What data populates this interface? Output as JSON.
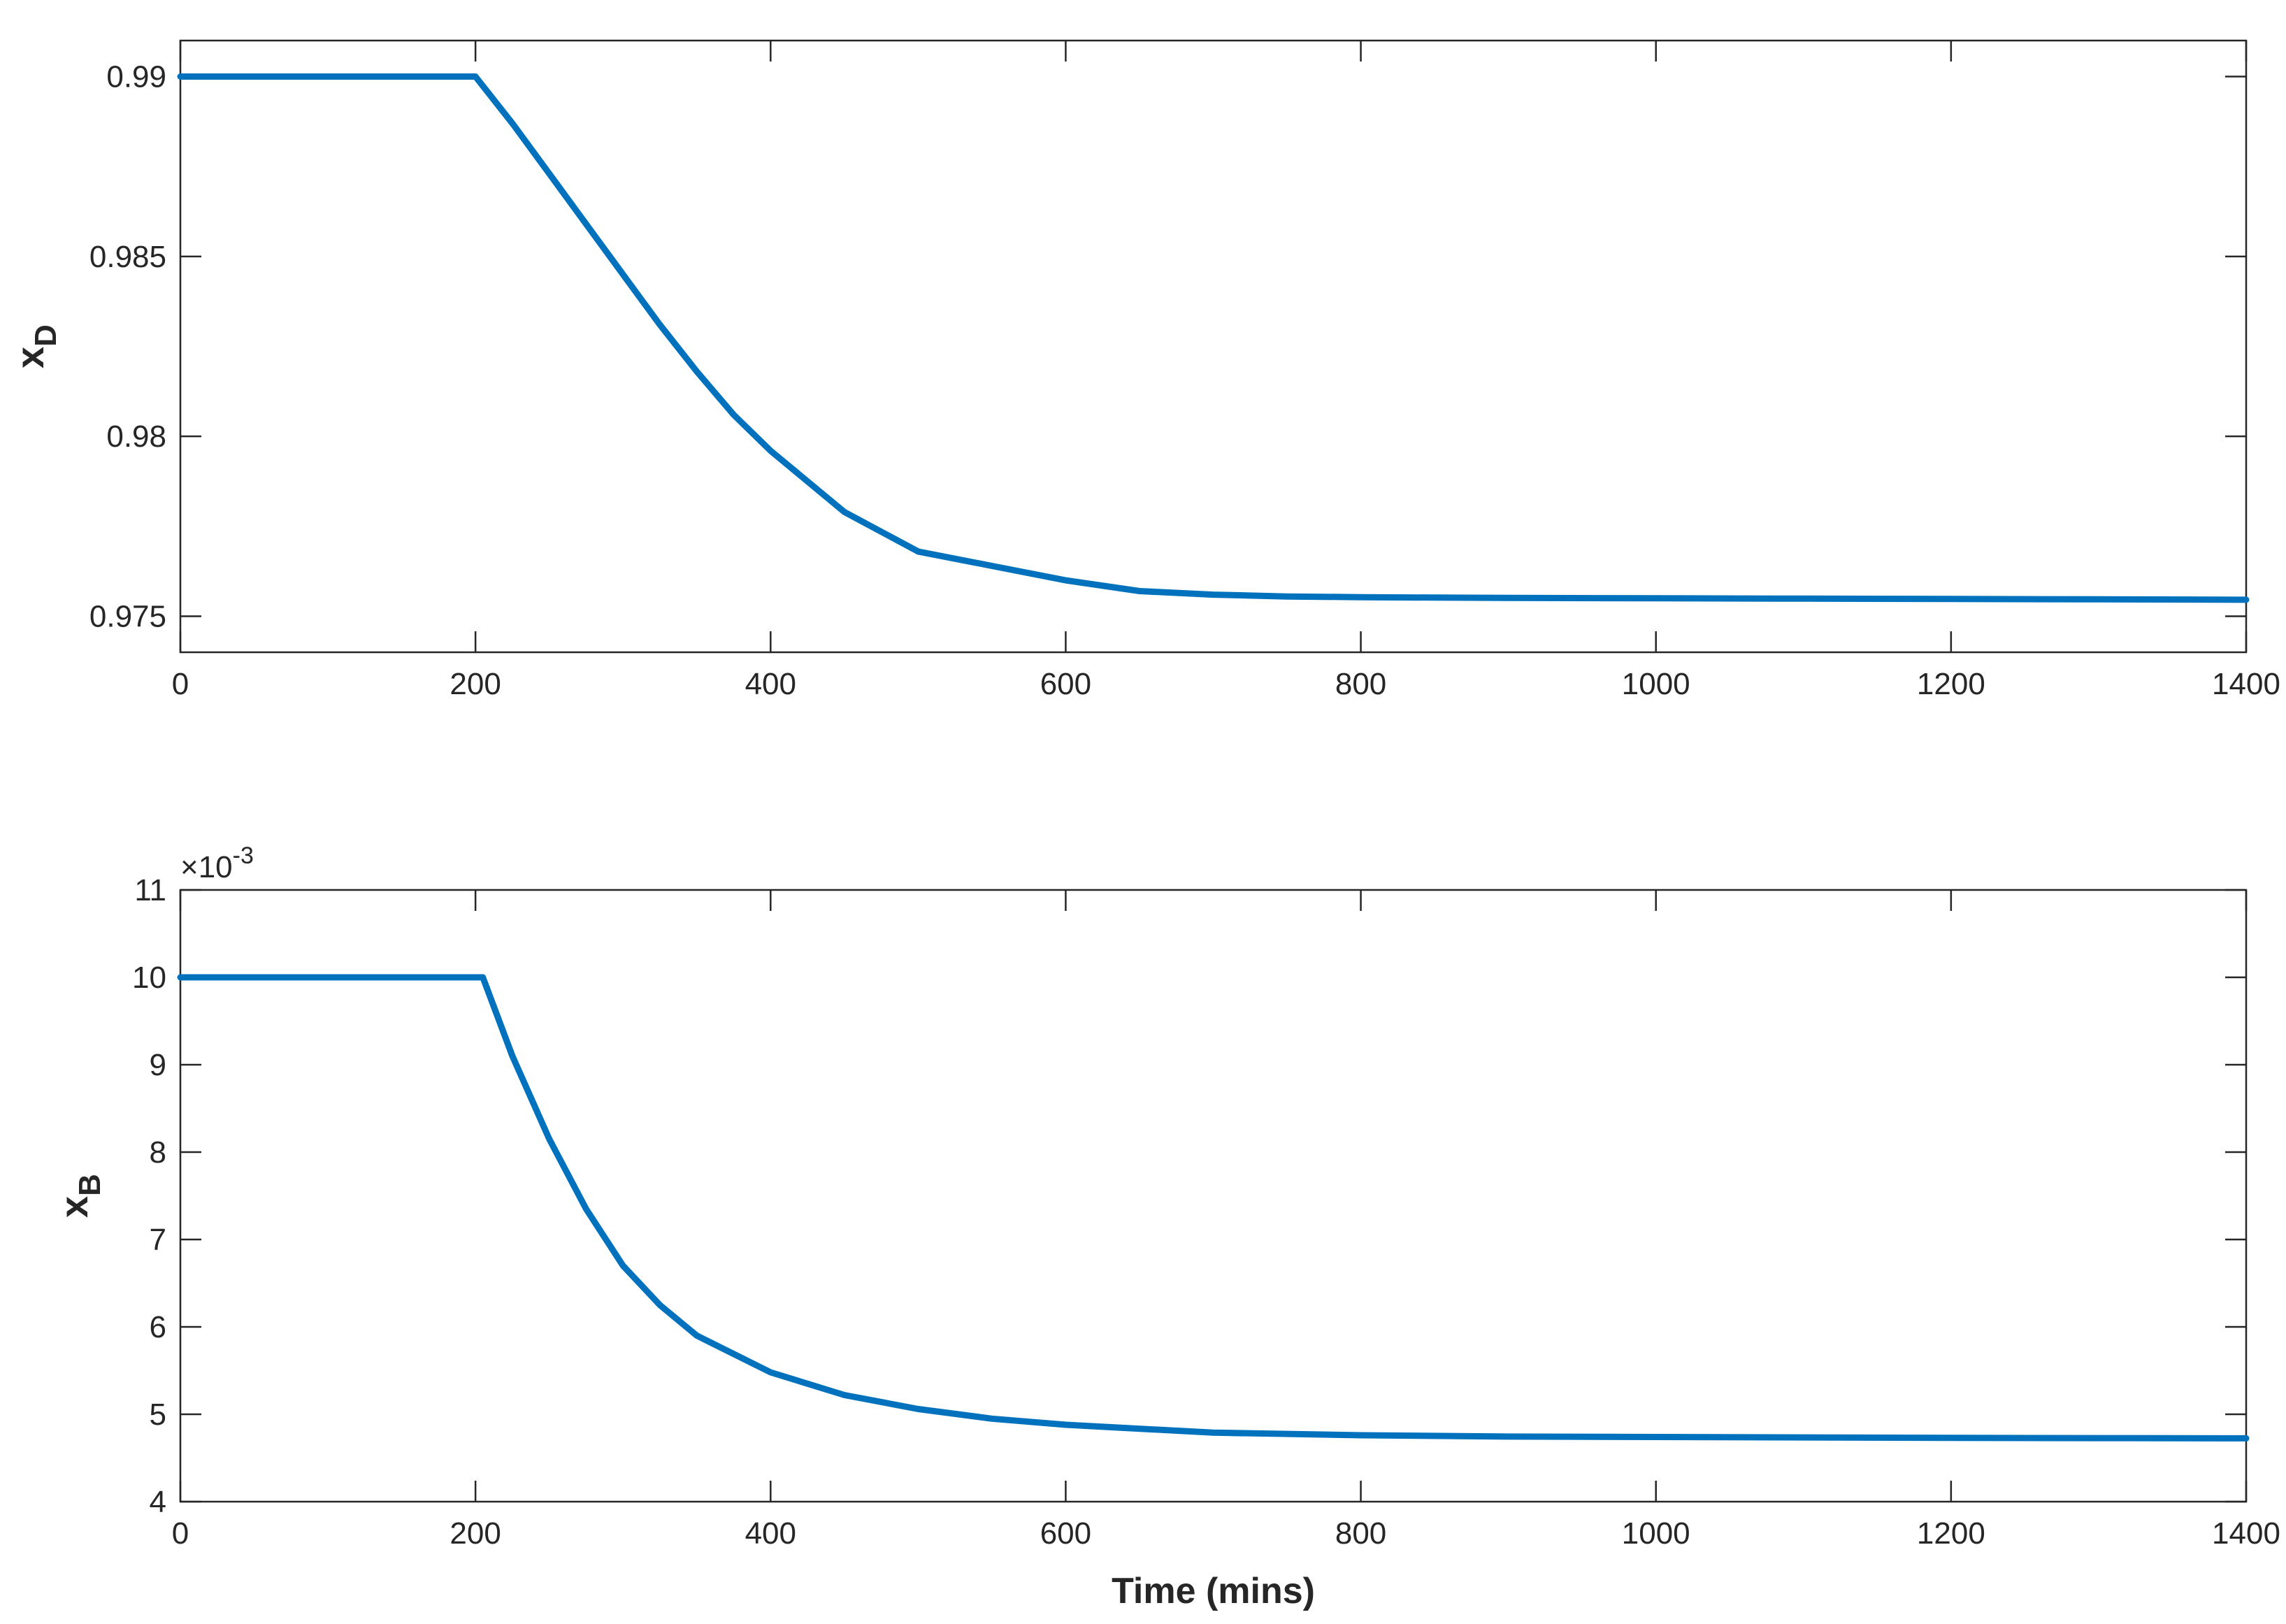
{
  "chart_data": [
    {
      "type": "line",
      "title": "",
      "xlabel": "",
      "ylabel": "x",
      "ylabel_subscript": "D",
      "xlim": [
        0,
        1400
      ],
      "ylim": [
        0.974,
        0.991
      ],
      "xticks": [
        0,
        200,
        400,
        600,
        800,
        1000,
        1200,
        1400
      ],
      "xtick_labels": [
        "0",
        "200",
        "400",
        "600",
        "800",
        "1000",
        "1200",
        "1400"
      ],
      "yticks": [
        0.975,
        0.98,
        0.985,
        0.99
      ],
      "ytick_labels": [
        "0.975",
        "0.98",
        "0.985",
        "0.99"
      ],
      "exponent_label": "",
      "grid": false,
      "color": "#0072BD",
      "series": [
        {
          "x": [
            0,
            200,
            225,
            250,
            275,
            300,
            325,
            350,
            375,
            400,
            450,
            500,
            550,
            600,
            650,
            700,
            750,
            800,
            850,
            900,
            1000,
            1100,
            1200,
            1300,
            1400
          ],
          "y": [
            0.99,
            0.99,
            0.9887,
            0.9873,
            0.9859,
            0.9845,
            0.9831,
            0.9818,
            0.9806,
            0.9796,
            0.9779,
            0.9768,
            0.9764,
            0.976,
            0.9757,
            0.9756,
            0.97555,
            0.97553,
            0.97552,
            0.97551,
            0.9755,
            0.97549,
            0.97548,
            0.97547,
            0.97546
          ]
        }
      ]
    },
    {
      "type": "line",
      "title": "",
      "xlabel": "Time (mins)",
      "ylabel": "x",
      "ylabel_subscript": "B",
      "xlim": [
        0,
        1400
      ],
      "ylim": [
        4,
        11
      ],
      "xticks": [
        0,
        200,
        400,
        600,
        800,
        1000,
        1200,
        1400
      ],
      "xtick_labels": [
        "0",
        "200",
        "400",
        "600",
        "800",
        "1000",
        "1200",
        "1400"
      ],
      "yticks": [
        4,
        5,
        6,
        7,
        8,
        9,
        10,
        11
      ],
      "ytick_labels": [
        "4",
        "5",
        "6",
        "7",
        "8",
        "9",
        "10",
        "11"
      ],
      "exponent_label": "×10",
      "exponent_power": "-3",
      "grid": false,
      "color": "#0072BD",
      "series": [
        {
          "x": [
            0,
            200,
            205,
            225,
            250,
            275,
            300,
            325,
            350,
            400,
            450,
            500,
            550,
            600,
            700,
            800,
            900,
            1000,
            1100,
            1200,
            1300,
            1400
          ],
          "y": [
            10,
            10,
            10,
            9.1,
            8.15,
            7.35,
            6.7,
            6.25,
            5.9,
            5.48,
            5.22,
            5.06,
            4.95,
            4.88,
            4.79,
            4.76,
            4.745,
            4.74,
            4.735,
            4.73,
            4.727,
            4.725
          ]
        }
      ]
    }
  ]
}
